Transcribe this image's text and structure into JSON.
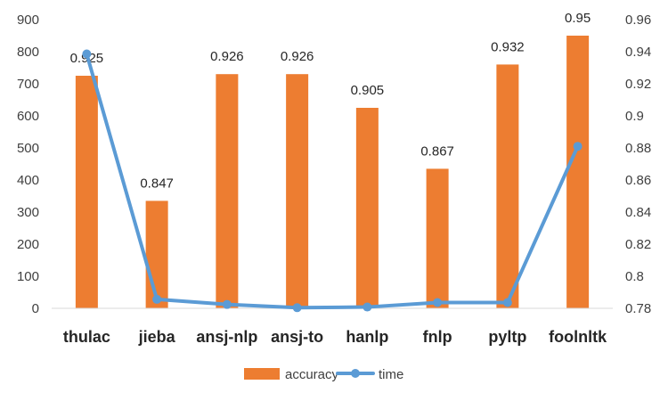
{
  "chart_data": {
    "type": "bar",
    "categories": [
      "thulac",
      "jieba",
      "ansj-nlp",
      "ansj-to",
      "hanlp",
      "fnlp",
      "pyltp",
      "foolnltk"
    ],
    "series": [
      {
        "name": "accuracy",
        "type": "bar",
        "axis": "right",
        "values": [
          0.925,
          0.847,
          0.926,
          0.926,
          0.905,
          0.867,
          0.932,
          0.95
        ],
        "labels": [
          "0.925",
          "0.847",
          "0.926",
          "0.926",
          "0.905",
          "0.867",
          "0.932",
          "0.95"
        ],
        "color": "#ED7D31"
      },
      {
        "name": "time",
        "type": "line",
        "axis": "left",
        "values": [
          793,
          28,
          12,
          2,
          4,
          18,
          18,
          505
        ],
        "color": "#5B9BD5"
      }
    ],
    "y_left": {
      "min": 0,
      "max": 900,
      "ticks": [
        "0",
        "100",
        "200",
        "300",
        "400",
        "500",
        "600",
        "700",
        "800",
        "900"
      ]
    },
    "y_right": {
      "min": 0.78,
      "max": 0.96,
      "ticks": [
        "0.78",
        "0.8",
        "0.82",
        "0.84",
        "0.86",
        "0.88",
        "0.9",
        "0.92",
        "0.94",
        "0.96"
      ]
    },
    "grid": false,
    "legend_position": "bottom"
  }
}
